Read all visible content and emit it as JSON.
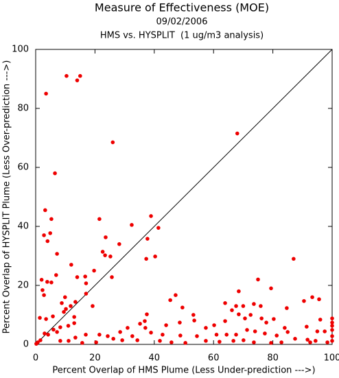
{
  "chart_data": {
    "type": "scatter",
    "title": "Measure of Effectiveness (MOE)",
    "subtitles": [
      "09/02/2006",
      "HMS vs. HYSPLIT  (1 ug/m3 analysis)"
    ],
    "x_label": "Percent Overlap of HMS Plume (Less Under-prediction --->)",
    "y_label": "Percent Overlap of HYSPLIT Plume (Less Over-prediction --->)",
    "xlim": [
      0,
      100
    ],
    "ylim": [
      0,
      100
    ],
    "xticks": [
      0,
      20,
      40,
      60,
      80,
      100
    ],
    "yticks": [
      0,
      20,
      40,
      60,
      80,
      100
    ],
    "diagonal": true,
    "color": "#ee0000",
    "x": [
      10.4,
      15,
      14,
      3.5,
      6.5,
      26,
      68,
      3.2,
      5.3,
      2.8,
      4,
      4.9,
      21.5,
      32.4,
      38.9,
      41.4,
      23.6,
      37.7,
      28.2,
      22.6,
      23.4,
      25.2,
      37.3,
      40.3,
      87,
      12,
      7.2,
      2,
      3.9,
      5.3,
      6.9,
      14,
      16.7,
      17,
      19.7,
      2.3,
      2.8,
      8.8,
      9.9,
      13.4,
      17,
      25.7,
      19.2,
      10.2,
      11.8,
      13,
      9.5,
      5.8,
      3.5,
      1.4,
      6,
      7.2,
      8.3,
      11,
      13,
      3,
      4.2,
      1.6,
      0.7,
      0.2,
      75,
      79.4,
      68.5,
      93.3,
      45.4,
      47.2,
      49.5,
      63.9,
      67.6,
      70,
      66.2,
      73.6,
      75.9,
      84.7,
      90.5,
      95.6,
      100,
      100,
      100,
      100,
      100,
      100,
      96,
      91.4,
      95,
      97.5,
      92.6,
      87.5,
      85,
      84,
      80.3,
      77.8,
      76.2,
      72.5,
      70.6,
      68.5,
      63.9,
      60.2,
      57.4,
      53.2,
      53.5,
      48.6,
      44,
      42.8,
      38.9,
      37,
      35.2,
      37.5,
      36.8,
      31,
      32.6,
      28.5,
      26.2,
      24.3,
      29.2,
      34.3,
      41.9,
      45.8,
      50.5,
      57.4,
      62,
      66.7,
      70.1,
      73.6,
      79.4,
      82.9,
      91.7,
      94.4,
      98.4,
      64.4,
      67.6,
      71.3,
      74,
      77.3,
      81.3,
      61,
      54.4,
      48.8,
      20.4,
      15.7,
      13.4,
      16.9,
      21.5,
      11.1,
      8.3
    ],
    "y": [
      91,
      91,
      89.5,
      85,
      58,
      68.5,
      71.5,
      45.5,
      42.5,
      37,
      35,
      37.7,
      42.5,
      40.5,
      43.5,
      39.5,
      36.3,
      35.8,
      34,
      31.4,
      30.2,
      29.8,
      29,
      29.8,
      29,
      27,
      30.7,
      21.9,
      21.2,
      21,
      23.5,
      22.8,
      23,
      20.7,
      25,
      18.4,
      16.7,
      14,
      16,
      14.4,
      17.2,
      22.8,
      13,
      12,
      13,
      9.3,
      11,
      9.5,
      8.6,
      9,
      5,
      4.2,
      5.8,
      6.3,
      7.2,
      3.7,
      3.3,
      1.4,
      0.7,
      0.2,
      22,
      19,
      18,
      16,
      15,
      16.7,
      12.5,
      14,
      13,
      13,
      11.6,
      13.7,
      13,
      12.3,
      14.7,
      15.3,
      8.8,
      7.4,
      6.3,
      4.9,
      2.8,
      1.2,
      8.4,
      6,
      4.4,
      4.4,
      0.7,
      1.9,
      4.2,
      5.6,
      8.6,
      7.4,
      8.8,
      10,
      8.8,
      10.2,
      7.9,
      6.5,
      5.6,
      10,
      8.1,
      7.4,
      6.5,
      3.3,
      4,
      5.6,
      7,
      10.2,
      7.9,
      5.6,
      2.8,
      4.2,
      1.9,
      2.8,
      1.4,
      1.4,
      1.2,
      0.7,
      0.5,
      1.2,
      0.9,
      1.2,
      1.4,
      0.7,
      0.5,
      0.7,
      1.6,
      1.2,
      0.7,
      3.3,
      3.3,
      4.9,
      4.4,
      3.7,
      3,
      3.3,
      2.8,
      3,
      0.7,
      0.5,
      2.3,
      3.3,
      3.3,
      1.2,
      1.2
    ]
  }
}
